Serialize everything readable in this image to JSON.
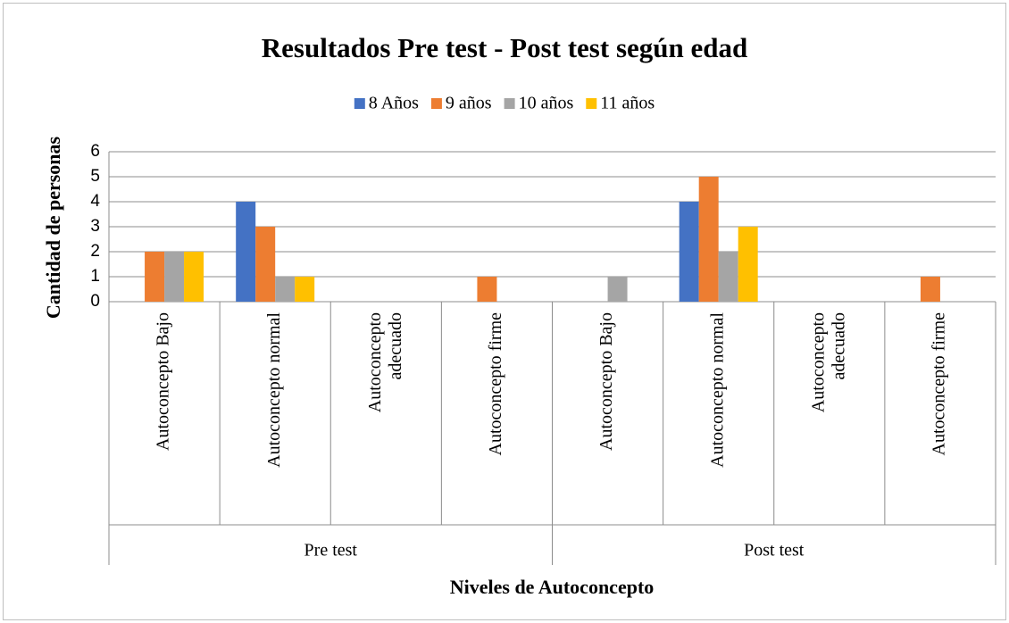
{
  "chart_data": {
    "type": "bar",
    "title": "Resultados Pre test - Post test según edad",
    "x_label": "Niveles de Autoconcepto",
    "y_label": "Cantidad de personas",
    "groups": [
      "Pre test",
      "Post test"
    ],
    "categories": [
      "Autoconcepto Bajo",
      "Autoconcepto normal",
      "Autoconcepto\nadecuado",
      "Autoconcepto firme",
      "Autoconcepto Bajo",
      "Autoconcepto normal",
      "Autoconcepto\nadecuado",
      "Autoconcepto firme"
    ],
    "series": [
      {
        "name": "8 Años",
        "color": "#4472c4",
        "values": [
          0,
          4,
          0,
          0,
          0,
          4,
          0,
          0
        ]
      },
      {
        "name": "9 años",
        "color": "#ed7d31",
        "values": [
          2,
          3,
          0,
          1,
          0,
          5,
          0,
          1
        ]
      },
      {
        "name": "10 años",
        "color": "#a5a5a5",
        "values": [
          2,
          1,
          0,
          0,
          1,
          2,
          0,
          0
        ]
      },
      {
        "name": "11 años",
        "color": "#ffc000",
        "values": [
          2,
          1,
          0,
          0,
          0,
          3,
          0,
          0
        ]
      }
    ],
    "ylim": [
      0,
      6
    ],
    "yticks": [
      0,
      1,
      2,
      3,
      4,
      5,
      6
    ],
    "grid": true,
    "legend": "top"
  }
}
